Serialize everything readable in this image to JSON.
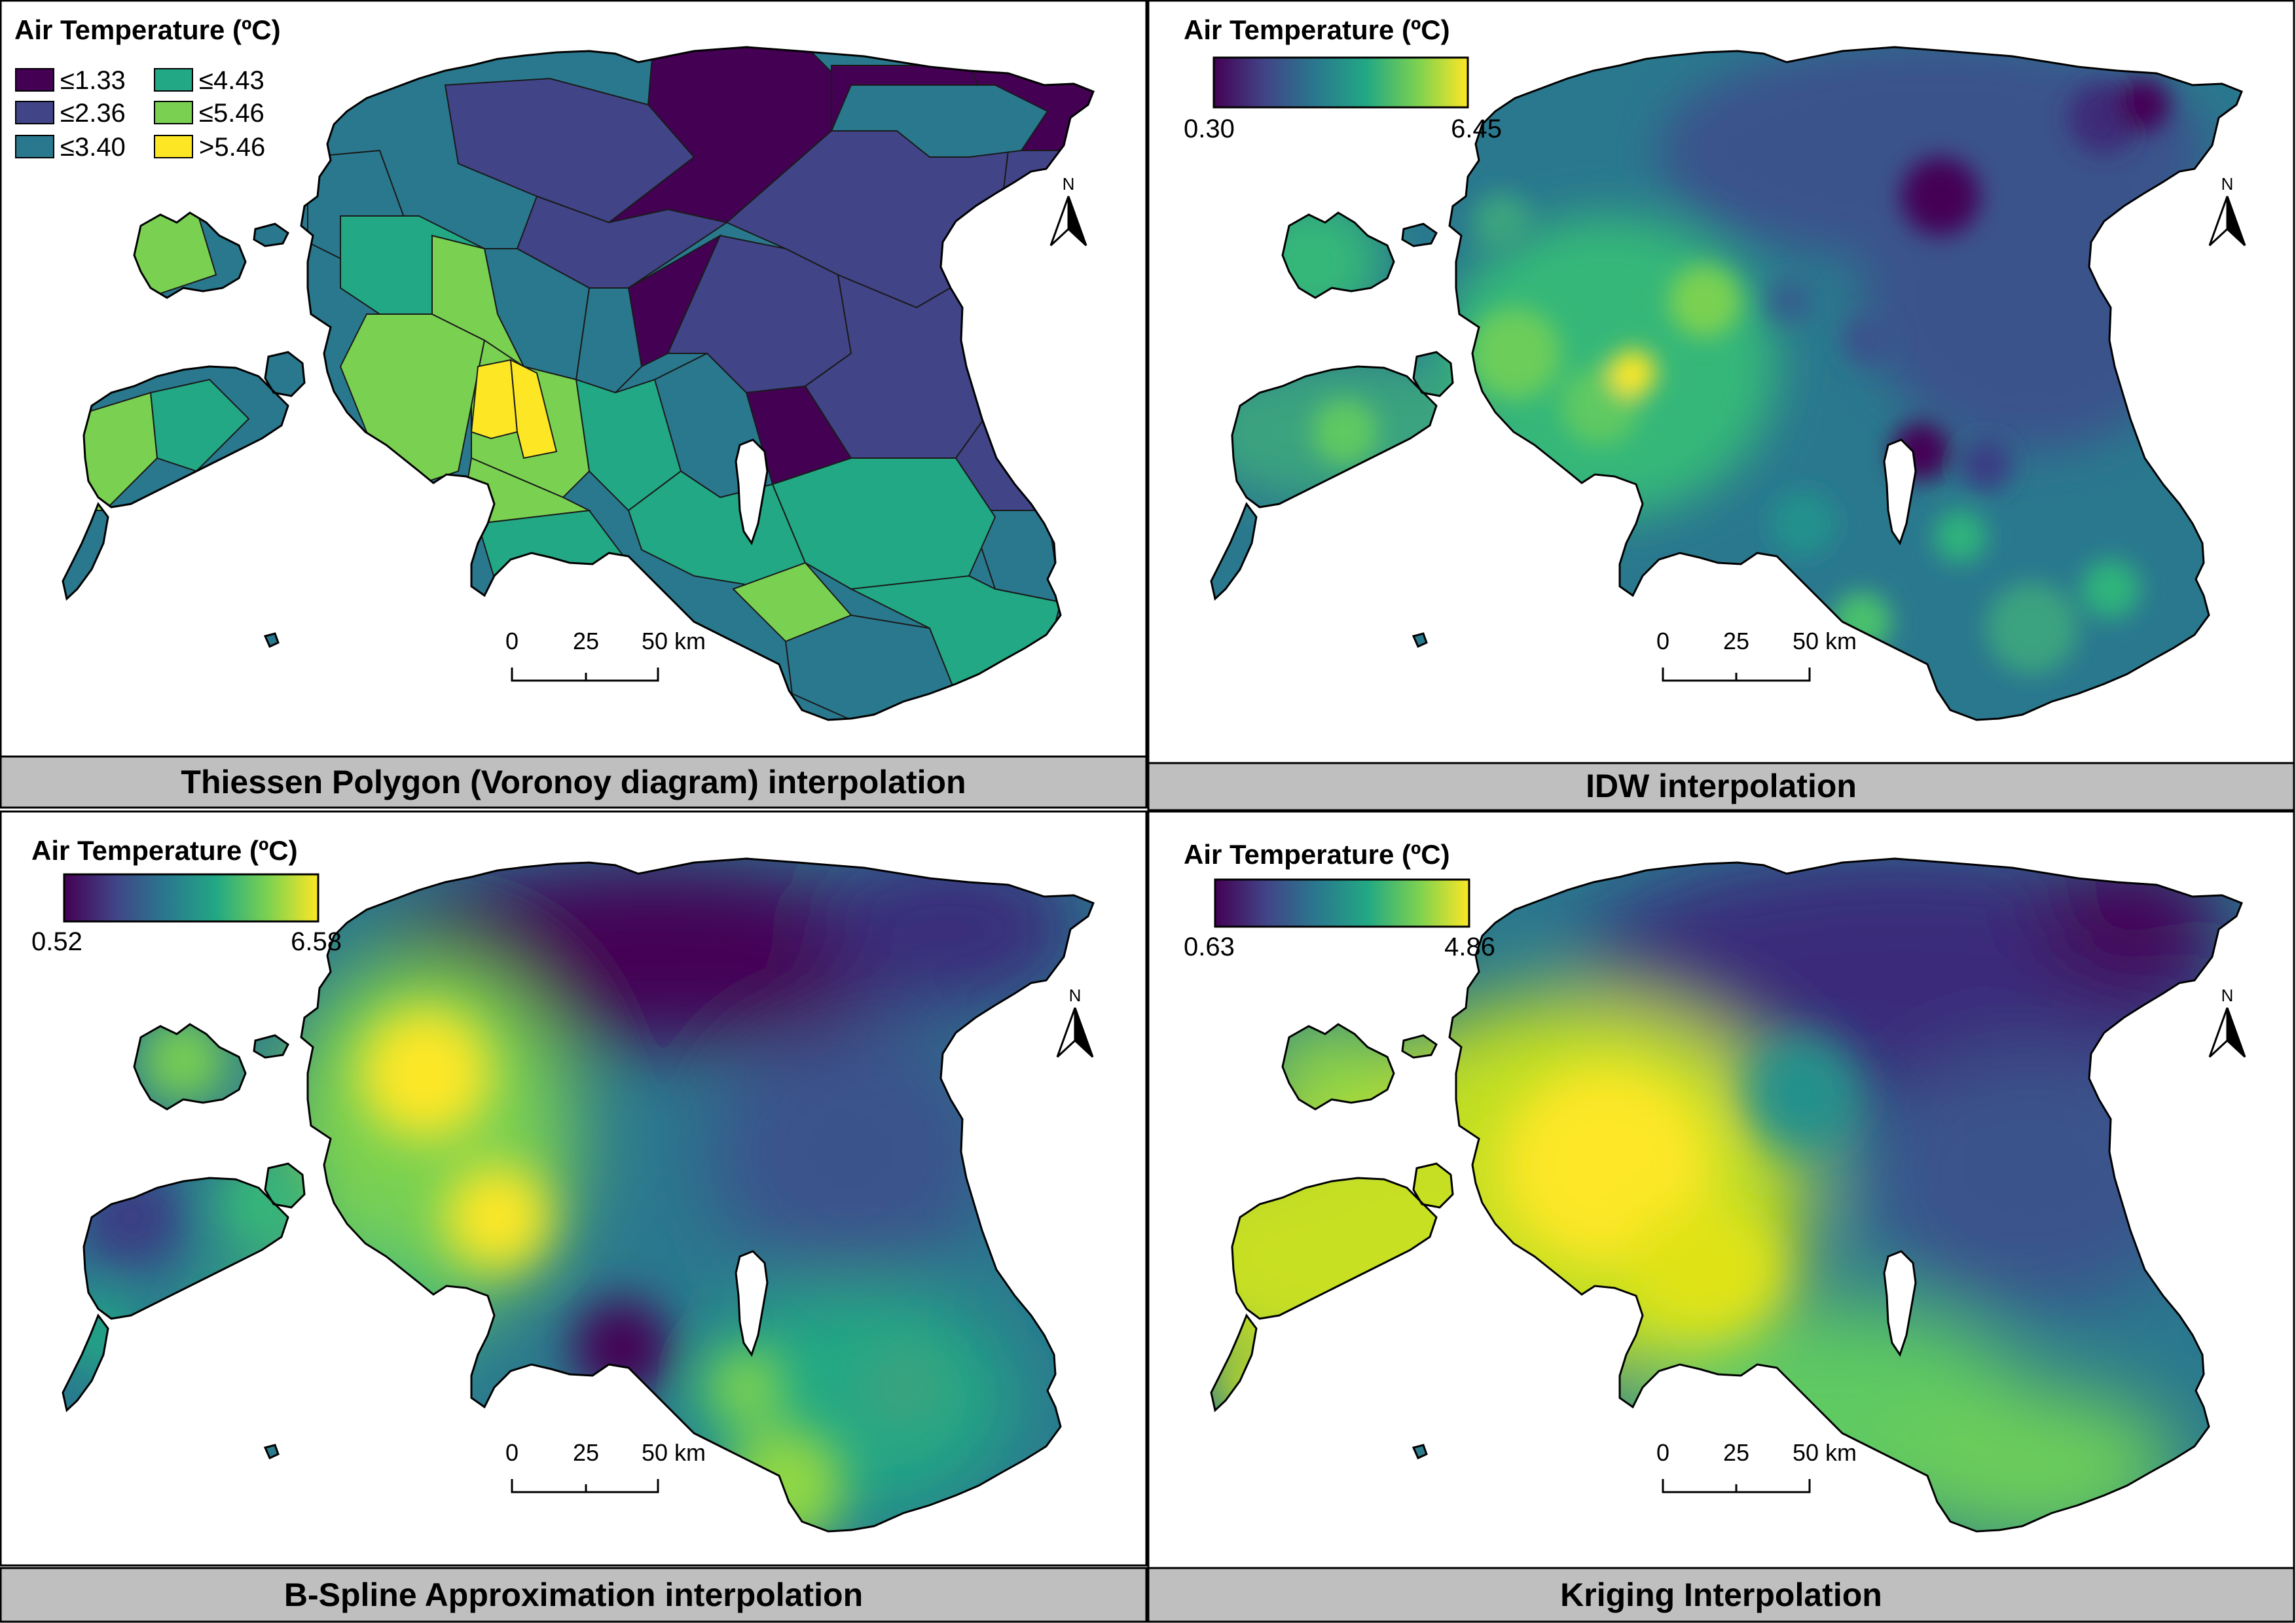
{
  "panels": [
    {
      "id": "thiessen",
      "title": "Thiessen Polygon (Voronoy diagram) interpolation",
      "legend_title": "Air Temperature (ºC)",
      "legend_type": "classes",
      "classes": [
        {
          "label": "≤1.33",
          "color": "#440154"
        },
        {
          "label": "≤2.36",
          "color": "#414487"
        },
        {
          "label": "≤3.40",
          "color": "#2a788e"
        },
        {
          "label": "≤4.43",
          "color": "#22a884"
        },
        {
          "label": "≤5.46",
          "color": "#7ad151"
        },
        {
          "label": ">5.46",
          "color": "#fde725"
        }
      ],
      "scale_labels": [
        "0",
        "25",
        "50 km"
      ],
      "north_label": "N"
    },
    {
      "id": "idw",
      "title": "IDW interpolation",
      "legend_title": "Air Temperature (ºC)",
      "legend_type": "gradient",
      "min_label": "0.30",
      "max_label": "6.45",
      "scale_labels": [
        "0",
        "25",
        "50 km"
      ],
      "north_label": "N"
    },
    {
      "id": "bspline",
      "title": "B-Spline Approximation interpolation",
      "legend_title": "Air Temperature (ºC)",
      "legend_type": "gradient",
      "min_label": "0.52",
      "max_label": "6.58",
      "scale_labels": [
        "0",
        "25",
        "50 km"
      ],
      "north_label": "N"
    },
    {
      "id": "kriging",
      "title": "Kriging Interpolation",
      "legend_title": "Air Temperature (ºC)",
      "legend_type": "gradient",
      "min_label": "0.63",
      "max_label": "4.86",
      "scale_labels": [
        "0",
        "25",
        "50 km"
      ],
      "north_label": "N"
    }
  ],
  "colormap": "viridis",
  "viridis_stops": [
    "#440154",
    "#414487",
    "#2a788e",
    "#22a884",
    "#7ad151",
    "#fde725"
  ]
}
